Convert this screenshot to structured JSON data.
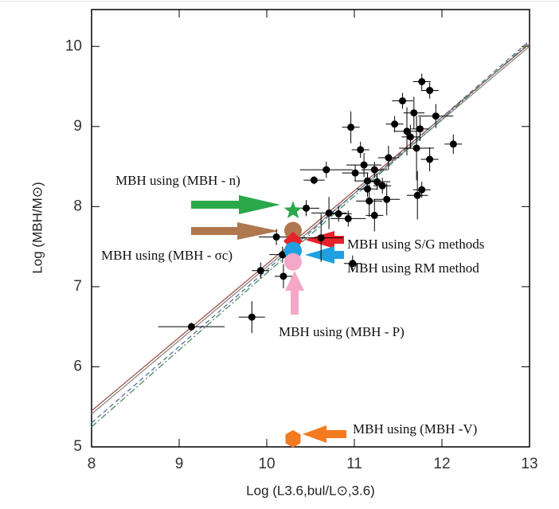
{
  "chart_data": {
    "type": "scatter",
    "xlabel": "Log (L3.6,bul/L⊙,3.6)",
    "ylabel": "Log (MBH/M⊙)",
    "xlim": [
      8,
      13
    ],
    "ylim": [
      5,
      10.46
    ],
    "xticks": [
      8,
      9,
      10,
      11,
      12,
      13
    ],
    "yticks": [
      5,
      6,
      7,
      8,
      9,
      10
    ],
    "color": "#000000",
    "x": [
      9.14,
      9.83,
      9.93,
      10.19,
      10.11,
      10.45,
      10.54,
      10.68,
      10.62,
      10.71,
      10.82,
      10.93,
      11.01,
      11.07,
      11.11,
      11.15,
      11.17,
      11.15,
      11.23,
      11.26,
      11.32,
      11.37,
      10.96,
      11.39,
      11.46,
      11.55,
      11.6,
      11.64,
      11.71,
      11.68,
      11.75,
      11.77,
      11.86,
      11.93,
      11.86,
      11.72,
      11.77,
      12.13,
      10.98,
      10.18,
      11.23
    ],
    "values": [
      6.5,
      6.62,
      7.2,
      7.13,
      7.62,
      7.98,
      8.33,
      8.46,
      7.61,
      7.92,
      7.91,
      7.85,
      8.42,
      8.71,
      8.52,
      8.32,
      8.07,
      8.22,
      8.46,
      8.31,
      8.26,
      8.09,
      8.99,
      8.61,
      9.03,
      9.32,
      8.94,
      8.87,
      8.73,
      9.17,
      8.97,
      9.56,
      9.45,
      9.13,
      8.59,
      8.14,
      8.21,
      8.78,
      7.29,
      7.4,
      7.89
    ],
    "xerr": [
      0.38,
      0.15,
      0.1,
      0.1,
      0.2,
      0.15,
      0.12,
      0.3,
      0.25,
      0.2,
      0.15,
      0.2,
      0.15,
      0.1,
      0.2,
      0.15,
      0.15,
      0.12,
      0.15,
      0.15,
      0.1,
      0.15,
      0.1,
      0.12,
      0.1,
      0.12,
      0.15,
      0.1,
      0.2,
      0.12,
      0.1,
      0.1,
      0.1,
      0.2,
      0.1,
      0.12,
      0.1,
      0.1,
      0.1,
      0.15,
      0.1
    ],
    "yerr": [
      0.05,
      0.2,
      0.1,
      0.15,
      0.1,
      0.1,
      0.05,
      0.1,
      0.3,
      0.2,
      0.1,
      0.1,
      0.1,
      0.1,
      0.15,
      0.1,
      0.2,
      0.1,
      0.1,
      0.1,
      0.1,
      0.2,
      0.2,
      0.15,
      0.1,
      0.1,
      0.3,
      0.15,
      0.4,
      0.2,
      0.15,
      0.1,
      0.1,
      0.15,
      0.15,
      0.3,
      0.1,
      0.12,
      0.1,
      0.1,
      0.2
    ],
    "fit_lines": [
      {
        "color": "#a0524a",
        "dash": "none",
        "x": [
          8,
          13
        ],
        "values": [
          5.45,
          10.03
        ]
      },
      {
        "color": "#888888",
        "dash": "none",
        "x": [
          8,
          13
        ],
        "values": [
          5.41,
          10.0
        ]
      },
      {
        "color": "#5a6fa0",
        "dash": "6 4",
        "x": [
          8,
          13
        ],
        "values": [
          5.3,
          10.07
        ]
      },
      {
        "color": "#4a8a60",
        "dash": "8 3 2 3",
        "x": [
          8,
          13
        ],
        "values": [
          5.25,
          10.05
        ]
      }
    ],
    "markers": [
      {
        "x": 10.3,
        "y": 7.95,
        "color": "#2aa84a",
        "shape": "star"
      },
      {
        "x": 10.3,
        "y": 7.7,
        "color": "#b07850",
        "shape": "circle"
      },
      {
        "x": 10.3,
        "y": 7.57,
        "color": "#e8222a",
        "shape": "diamond"
      },
      {
        "x": 10.3,
        "y": 7.45,
        "color": "#1fa0e0",
        "shape": "circle"
      },
      {
        "x": 10.3,
        "y": 7.31,
        "color": "#f4a8c8",
        "shape": "circle"
      },
      {
        "x": 10.3,
        "y": 5.1,
        "color": "#f47a20",
        "shape": "hexagon"
      }
    ],
    "annotations": [
      "MBH using (MBH - n)",
      "MBH using (MBH - σc)",
      "MBH using S/G methods",
      "MBH using RM method",
      "MBH using (MBH - P)",
      "MBH using (MBH -V)"
    ]
  }
}
